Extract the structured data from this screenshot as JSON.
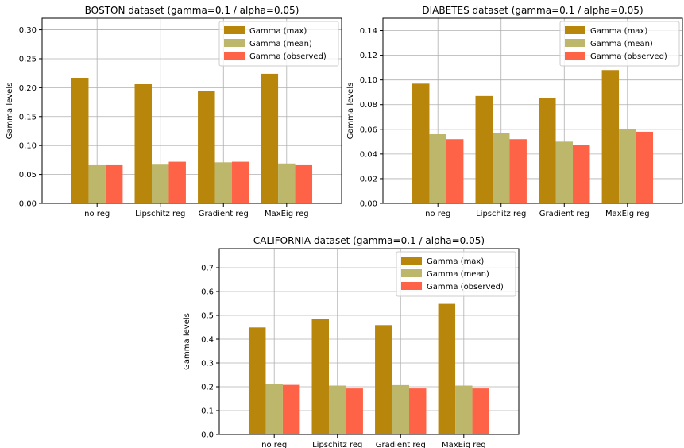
{
  "figure": {
    "legend_labels": [
      "Gamma (max)",
      "Gamma (mean)",
      "Gamma (observed)"
    ]
  },
  "chart_data": [
    {
      "type": "bar",
      "title": "BOSTON dataset (gamma=0.1 / alpha=0.05)",
      "xlabel": "",
      "ylabel": "Gamma levels",
      "categories": [
        "no reg",
        "Lipschitz reg",
        "Gradient reg",
        "MaxEig reg"
      ],
      "series": [
        {
          "name": "Gamma (max)",
          "color": "#b8860b",
          "values": [
            0.217,
            0.206,
            0.194,
            0.224
          ]
        },
        {
          "name": "Gamma (mean)",
          "color": "#bdb76b",
          "values": [
            0.066,
            0.067,
            0.071,
            0.069
          ]
        },
        {
          "name": "Gamma (observed)",
          "color": "#ff6347",
          "values": [
            0.066,
            0.072,
            0.072,
            0.066
          ]
        }
      ],
      "ylim": [
        0,
        0.32
      ],
      "yticks": [
        0.0,
        0.05,
        0.1,
        0.15,
        0.2,
        0.25,
        0.3
      ],
      "ytick_labels": [
        "0.00",
        "0.05",
        "0.10",
        "0.15",
        "0.20",
        "0.25",
        "0.30"
      ],
      "grid": true,
      "legend_position": "top-right"
    },
    {
      "type": "bar",
      "title": "DIABETES dataset (gamma=0.1 / alpha=0.05)",
      "xlabel": "",
      "ylabel": "Gamma levels",
      "categories": [
        "no reg",
        "Lipschitz reg",
        "Gradient reg",
        "MaxEig reg"
      ],
      "series": [
        {
          "name": "Gamma (max)",
          "color": "#b8860b",
          "values": [
            0.097,
            0.087,
            0.085,
            0.108
          ]
        },
        {
          "name": "Gamma (mean)",
          "color": "#bdb76b",
          "values": [
            0.056,
            0.057,
            0.05,
            0.06
          ]
        },
        {
          "name": "Gamma (observed)",
          "color": "#ff6347",
          "values": [
            0.052,
            0.052,
            0.047,
            0.058
          ]
        }
      ],
      "ylim": [
        0,
        0.15
      ],
      "yticks": [
        0.0,
        0.02,
        0.04,
        0.06,
        0.08,
        0.1,
        0.12,
        0.14
      ],
      "ytick_labels": [
        "0.00",
        "0.02",
        "0.04",
        "0.06",
        "0.08",
        "0.10",
        "0.12",
        "0.14"
      ],
      "grid": true,
      "legend_position": "top-right"
    },
    {
      "type": "bar",
      "title": "CALIFORNIA dataset (gamma=0.1 / alpha=0.05)",
      "xlabel": "",
      "ylabel": "Gamma levels",
      "categories": [
        "no reg",
        "Lipschitz reg",
        "Gradient reg",
        "MaxEig reg"
      ],
      "series": [
        {
          "name": "Gamma (max)",
          "color": "#b8860b",
          "values": [
            0.449,
            0.484,
            0.459,
            0.548
          ]
        },
        {
          "name": "Gamma (mean)",
          "color": "#bdb76b",
          "values": [
            0.212,
            0.205,
            0.207,
            0.205
          ]
        },
        {
          "name": "Gamma (observed)",
          "color": "#ff6347",
          "values": [
            0.208,
            0.193,
            0.193,
            0.193
          ]
        }
      ],
      "ylim": [
        0,
        0.78
      ],
      "yticks": [
        0.0,
        0.1,
        0.2,
        0.3,
        0.4,
        0.5,
        0.6,
        0.7
      ],
      "ytick_labels": [
        "0.0",
        "0.1",
        "0.2",
        "0.3",
        "0.4",
        "0.5",
        "0.6",
        "0.7"
      ],
      "grid": true,
      "legend_position": "top-right"
    }
  ]
}
